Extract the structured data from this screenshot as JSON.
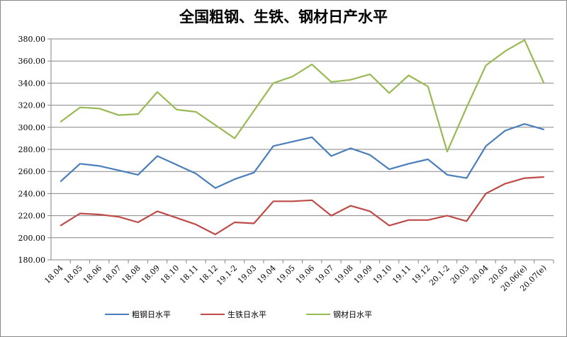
{
  "chart_data": {
    "type": "line",
    "title": "全国粗钢、生铁、钢材日产水平",
    "xlabel": "",
    "ylabel": "",
    "ylim": [
      180,
      380
    ],
    "yticks": [
      "180.00",
      "200.00",
      "220.00",
      "240.00",
      "260.00",
      "280.00",
      "300.00",
      "320.00",
      "340.00",
      "360.00",
      "380.00"
    ],
    "grid": true,
    "legend_position": "bottom",
    "categories": [
      "18.04",
      "18.05",
      "18.06",
      "18.07",
      "18.08",
      "18.09",
      "18.10",
      "18.11",
      "18.12",
      "19.1-2",
      "19.03",
      "19.04",
      "19.05",
      "19.06",
      "19.07",
      "19.08",
      "19.09",
      "19.10",
      "19.11",
      "19.12",
      "20.1-2",
      "20.03",
      "20.04",
      "20.05",
      "20.06(e)",
      "20.07(e)"
    ],
    "series": [
      {
        "name": "粗钢日水平",
        "color": "#4a7ebb",
        "values": [
          251,
          267,
          265,
          261,
          257,
          274,
          266,
          258,
          245,
          253,
          259,
          283,
          287,
          291,
          274,
          281,
          275,
          262,
          267,
          271,
          257,
          254,
          283,
          297,
          303,
          298
        ]
      },
      {
        "name": "生铁日水平",
        "color": "#be4b48",
        "values": [
          211,
          222,
          221,
          219,
          214,
          224,
          218,
          212,
          203,
          214,
          213,
          233,
          233,
          234,
          220,
          229,
          224,
          211,
          216,
          216,
          220,
          215,
          240,
          249,
          254,
          255
        ]
      },
      {
        "name": "钢材日水平",
        "color": "#98b954",
        "values": [
          305,
          318,
          317,
          311,
          312,
          332,
          316,
          314,
          302,
          290,
          315,
          340,
          346,
          357,
          341,
          343,
          348,
          331,
          347,
          337,
          278,
          318,
          356,
          369,
          379,
          340
        ]
      }
    ]
  }
}
